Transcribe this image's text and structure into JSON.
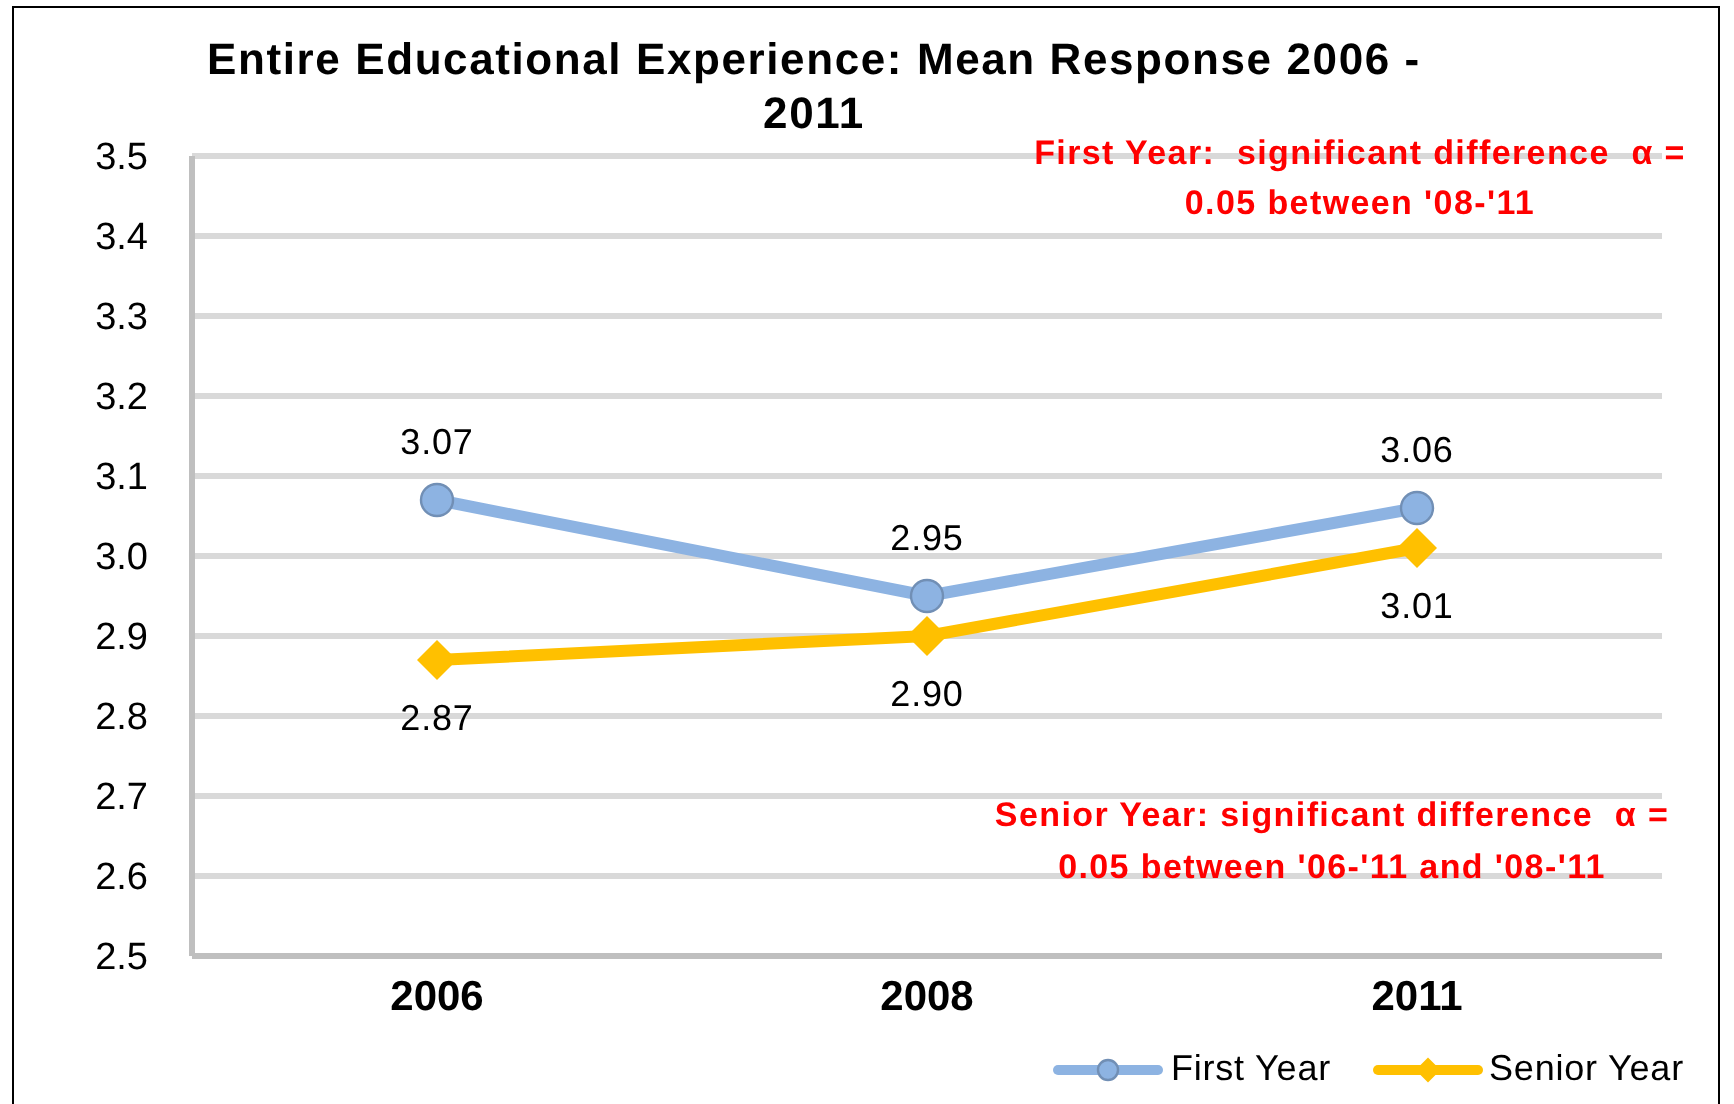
{
  "chart_data": {
    "type": "line",
    "title": "Entire Educational Experience: Mean Response 2006 - 2011",
    "categories": [
      "2006",
      "2008",
      "2011"
    ],
    "series": [
      {
        "name": "First Year",
        "color": "#8db3e2",
        "marker": "circle",
        "values": [
          3.07,
          2.95,
          3.06
        ],
        "value_labels": [
          "3.07",
          "2.95",
          "3.06"
        ]
      },
      {
        "name": "Senior Year",
        "color": "#ffc000",
        "marker": "diamond",
        "values": [
          2.87,
          2.9,
          3.01
        ],
        "value_labels": [
          "2.87",
          "2.90",
          "3.01"
        ]
      }
    ],
    "ylim": [
      2.5,
      3.5
    ],
    "yticks": [
      2.5,
      2.6,
      2.7,
      2.8,
      2.9,
      {
        "value": 3.0,
        "label": "3.0"
      },
      3.1,
      3.2,
      3.3,
      3.4,
      3.5
    ],
    "grid": "y",
    "legend": "bottom right",
    "annotations": [
      "First Year:  significant difference  α = 0.05 between '08-'11",
      "Senior Year: significant difference  α = 0.05 between '06-'11 and '08-'11"
    ]
  }
}
